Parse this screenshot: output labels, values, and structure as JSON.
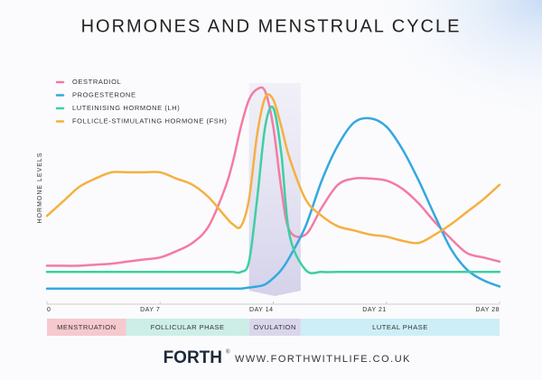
{
  "chart_data": {
    "type": "line",
    "title": "HORMONES AND MENSTRUAL CYCLE",
    "y_label": "HORMONE LEVELS",
    "x": [
      0,
      1,
      2,
      3,
      4,
      5,
      6,
      7,
      8,
      9,
      10,
      11,
      11.5,
      12,
      12.5,
      13,
      13.5,
      14,
      14.5,
      15,
      16,
      17,
      18,
      19,
      20,
      21,
      22,
      23,
      24,
      25,
      26,
      27,
      28
    ],
    "series": [
      {
        "name": "OESTRADIOL",
        "color": "#f47ba4",
        "values": [
          12,
          12,
          12,
          12.5,
          13,
          14,
          15,
          16,
          19,
          23,
          31,
          49,
          62,
          79,
          92,
          97,
          96,
          79,
          49,
          29,
          27,
          40,
          51,
          54,
          54,
          53,
          49,
          42,
          33,
          25,
          18,
          16,
          14
        ]
      },
      {
        "name": "PROGESTERONE",
        "color": "#35a8e0",
        "values": [
          1,
          1,
          1,
          1,
          1,
          1,
          1,
          1,
          1,
          1,
          1,
          1,
          1,
          1,
          1.5,
          2,
          3,
          6,
          10,
          16,
          31,
          53,
          70,
          81,
          83,
          79,
          68,
          53,
          36,
          20,
          10,
          5,
          2
        ]
      },
      {
        "name": "LUTEINISING HORMONE (LH)",
        "color": "#3ecfa3",
        "values": [
          9,
          9,
          9,
          9,
          9,
          9,
          9,
          9,
          9,
          9,
          9,
          9,
          9,
          9,
          14,
          44,
          79,
          88,
          66,
          27,
          10,
          9,
          9,
          9,
          9,
          9,
          9,
          9,
          9,
          9,
          9,
          9,
          9
        ]
      },
      {
        "name": "FOLLICLE-STIMULATING HORMONE (FSH)",
        "color": "#f5b041",
        "values": [
          36,
          43,
          50,
          54,
          57,
          57,
          57,
          57,
          54,
          51,
          45,
          36,
          32,
          31,
          44,
          75,
          93,
          92,
          79,
          64,
          44,
          36,
          31,
          29,
          27,
          26,
          24,
          23,
          27,
          32,
          38,
          44,
          51
        ]
      }
    ],
    "xlim": [
      0,
      28
    ],
    "xticks": [
      0,
      {
        "value": 7,
        "label": "DAY 7"
      },
      {
        "value": 14,
        "label": "DAY 14"
      },
      {
        "value": 21,
        "label": "DAY 21"
      },
      {
        "value": 28,
        "label": "DAY 28"
      }
    ],
    "ylim": [
      0,
      100
    ],
    "legend": "top-left",
    "phases": [
      {
        "label": "MENSTRUATION",
        "start": 0,
        "end": 4.9,
        "color": "#f6c9cf"
      },
      {
        "label": "FOLLICULAR PHASE",
        "start": 4.9,
        "end": 12.5,
        "color": "#cdeee6"
      },
      {
        "label": "OVULATION",
        "start": 12.5,
        "end": 15.7,
        "color": "#d9d6ec"
      },
      {
        "label": "LUTEAL PHASE",
        "start": 15.7,
        "end": 28,
        "color": "#cdeef6"
      }
    ]
  },
  "footer": {
    "brand": "FORTH",
    "brand_mark": "®",
    "website": "WWW.FORTHWITHLIFE.CO.UK"
  }
}
